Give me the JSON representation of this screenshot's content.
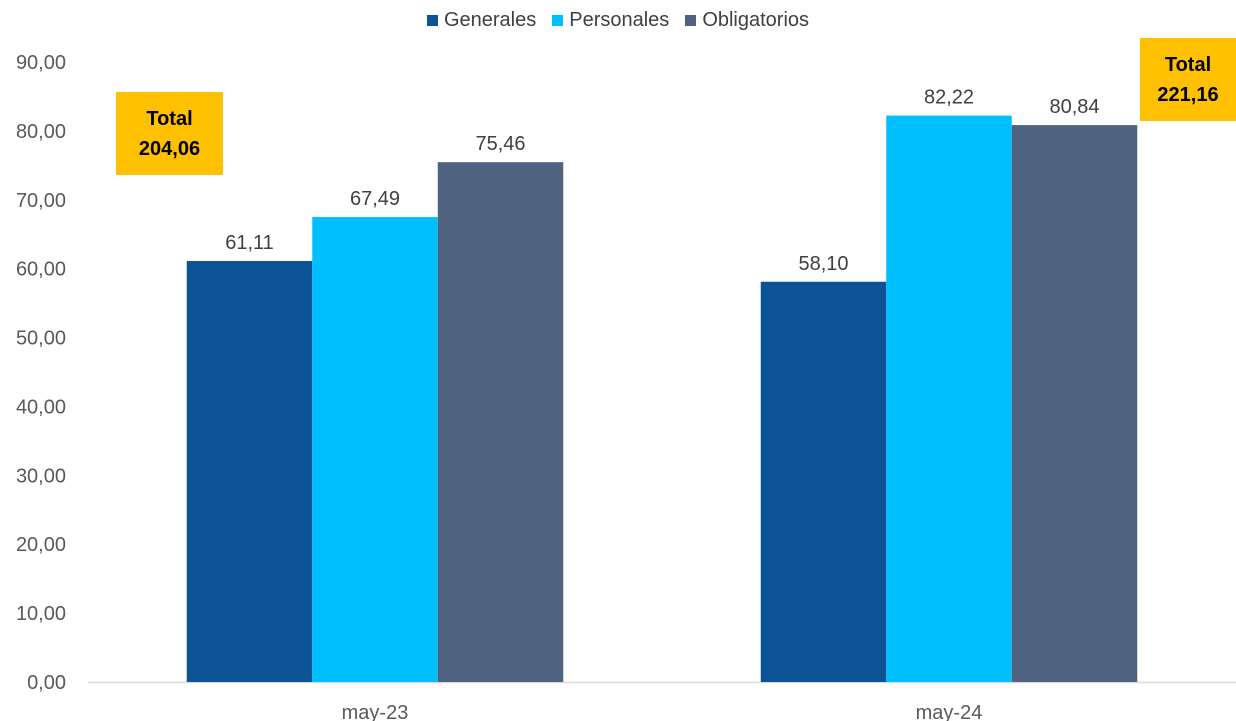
{
  "chart_data": {
    "type": "bar",
    "categories": [
      "may-23",
      "may-24"
    ],
    "series": [
      {
        "name": "Generales",
        "values": [
          61.11,
          58.1
        ],
        "labels": [
          "61,11",
          "58,10"
        ],
        "color": "#0b5394"
      },
      {
        "name": "Personales",
        "values": [
          67.49,
          82.22
        ],
        "labels": [
          "67,49",
          "82,22"
        ],
        "color": "#00bfff"
      },
      {
        "name": "Obligatorios",
        "values": [
          75.46,
          80.84
        ],
        "labels": [
          "75,46",
          "80,84"
        ],
        "color": "#4f627f"
      }
    ],
    "ylim": [
      0,
      90
    ],
    "yticks": [
      "0,00",
      "10,00",
      "20,00",
      "30,00",
      "40,00",
      "50,00",
      "60,00",
      "70,00",
      "80,00",
      "90,00"
    ],
    "grid": false,
    "legend": "top-center",
    "annotations": [
      {
        "category": "may-23",
        "line1": "Total",
        "line2": "204,06"
      },
      {
        "category": "may-24",
        "line1": "Total",
        "line2": "221,16"
      }
    ]
  }
}
